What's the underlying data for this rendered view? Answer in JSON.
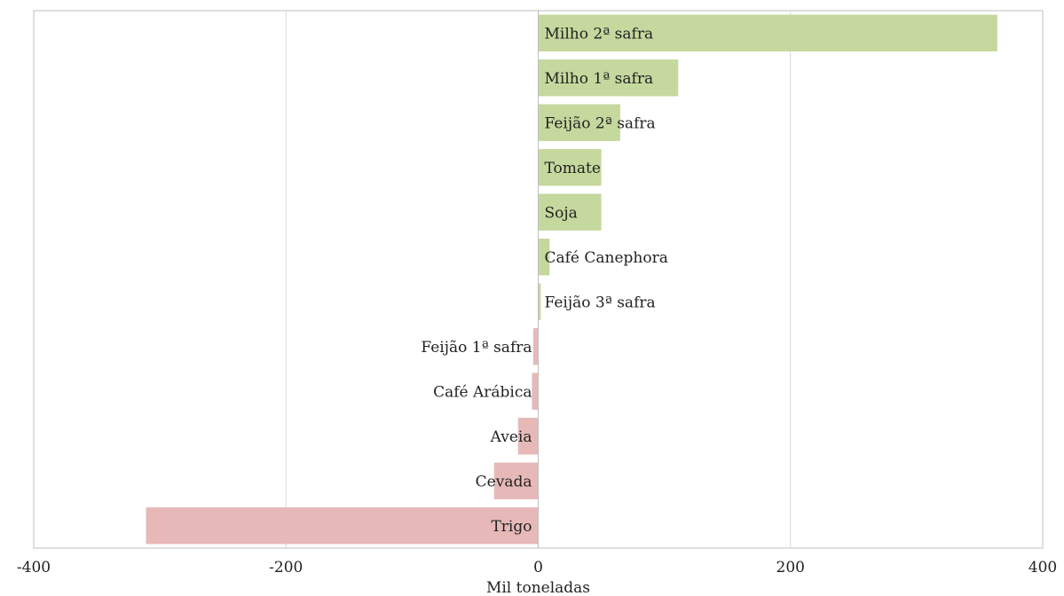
{
  "chart_data": {
    "type": "bar",
    "orientation": "horizontal",
    "title": "",
    "xlabel": "Mil toneladas",
    "ylabel": "",
    "xlim": [
      -400,
      400
    ],
    "xticks": [
      -400,
      -200,
      0,
      200,
      400
    ],
    "grid": true,
    "categories": [
      "Milho 2ª safra",
      "Milho 1ª safra",
      "Feijão 2ª safra",
      "Tomate",
      "Soja",
      "Café Canephora",
      "Feijão 3ª safra",
      "Feijão 1ª safra",
      "Café Arábica",
      "Aveia",
      "Cevada",
      "Trigo"
    ],
    "values": [
      364,
      111,
      65,
      50,
      50,
      9,
      2,
      -4,
      -5,
      -16,
      -35,
      -311
    ],
    "colors": {
      "positive": "#c5d89d",
      "negative": "#e6b9b8"
    }
  }
}
